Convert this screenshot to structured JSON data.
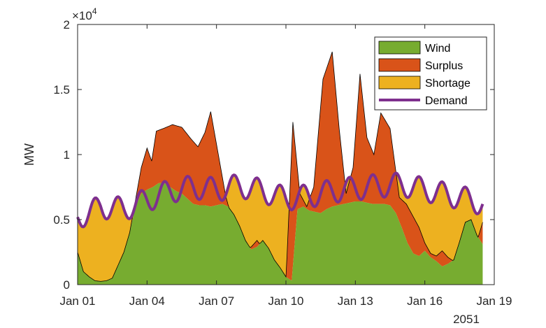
{
  "chart_data": {
    "type": "area",
    "title": "",
    "xlabel": "",
    "ylabel": "MW",
    "y_exponent_label": "×10",
    "y_exponent_power": "4",
    "x_secondary_label": "2051",
    "xlim": [
      0,
      18
    ],
    "ylim": [
      0,
      20000
    ],
    "x_ticks": [
      0,
      3,
      6,
      9,
      12,
      15,
      18
    ],
    "x_tick_labels": [
      "Jan 01",
      "Jan 04",
      "Jan 07",
      "Jan 10",
      "Jan 13",
      "Jan 16",
      "Jan 19"
    ],
    "y_ticks": [
      0,
      5000,
      10000,
      15000,
      20000
    ],
    "y_tick_labels": [
      "0",
      "0.5",
      "1",
      "1.5",
      "2"
    ],
    "grid": false,
    "legend_position": "top-right",
    "series": [
      {
        "name": "Wind",
        "color": "#77AC30",
        "kind": "area"
      },
      {
        "name": "Surplus",
        "color": "#D95319",
        "kind": "area"
      },
      {
        "name": "Shortage",
        "color": "#EDB120",
        "kind": "area"
      },
      {
        "name": "Demand",
        "color": "#7E2F8E",
        "kind": "line"
      }
    ],
    "x": [
      0,
      0.25,
      0.5,
      0.75,
      1,
      1.25,
      1.5,
      1.75,
      2,
      2.25,
      2.5,
      2.75,
      3,
      3.25,
      3.5,
      3.75,
      4,
      4.25,
      4.5,
      4.75,
      5,
      5.25,
      5.5,
      5.75,
      6,
      6.25,
      6.5,
      6.75,
      7,
      7.25,
      7.5,
      7.75,
      8,
      8.25,
      8.5,
      8.75,
      9,
      9.25,
      9.5,
      9.75,
      10,
      10.25,
      10.5,
      10.75,
      11,
      11.25,
      11.5,
      11.75,
      12,
      12.25,
      12.5,
      12.75,
      13,
      13.25,
      13.5,
      13.75,
      14,
      14.25,
      14.5,
      14.75,
      15,
      15.25,
      15.5,
      15.75,
      16,
      16.25,
      16.5,
      16.75,
      17,
      17.25,
      17.5
    ],
    "wind": [
      2500,
      1000,
      600,
      300,
      250,
      300,
      500,
      1500,
      2500,
      4000,
      6000,
      7000,
      7300,
      7500,
      7800,
      7800,
      7500,
      7200,
      7000,
      6600,
      6200,
      6100,
      6100,
      6000,
      6100,
      6200,
      6000,
      5400,
      4500,
      3400,
      2700,
      2900,
      3400,
      2800,
      1900,
      1300,
      600,
      300,
      5800,
      6000,
      5700,
      5600,
      5500,
      5800,
      6000,
      6100,
      6200,
      6300,
      6400,
      6400,
      6300,
      6200,
      6200,
      6200,
      6100,
      5500,
      4400,
      3200,
      2400,
      2200,
      2600,
      2100,
      1800,
      1400,
      1600,
      1900,
      3300,
      4800,
      5000,
      3800,
      3100
    ],
    "supply": [
      2500,
      1000,
      600,
      300,
      250,
      300,
      500,
      1500,
      2500,
      4000,
      6500,
      9000,
      10500,
      9500,
      11800,
      12000,
      12300,
      12100,
      11200,
      10600,
      11700,
      13300,
      9800,
      6800,
      4500,
      3400,
      2700,
      2900,
      3400,
      2800,
      1900,
      1300,
      600,
      300,
      12500,
      7000,
      6000,
      7500,
      15800,
      17900,
      12000,
      7000,
      9000,
      16200,
      11300,
      10000,
      13200,
      12000,
      6700,
      6200,
      4400,
      3200,
      2400,
      2200,
      2600,
      2100,
      1800,
      1400,
      1600,
      1900,
      3300,
      4800,
      5000,
      3800,
      3100
    ],
    "supply_x": [
      0,
      0.25,
      0.5,
      0.75,
      1,
      1.25,
      1.5,
      1.75,
      2,
      2.25,
      2.5,
      2.75,
      3,
      3.2,
      3.4,
      3.7,
      4.1,
      4.5,
      4.9,
      5.2,
      5.5,
      5.75,
      6.1,
      6.4,
      6.75,
      7,
      7.25,
      7.5,
      7.75,
      8,
      8.25,
      8.5,
      8.75,
      9,
      9.3,
      9.6,
      9.9,
      10.2,
      10.6,
      11,
      11.3,
      11.6,
      11.9,
      12.2,
      12.5,
      12.8,
      13.1,
      13.5,
      13.9,
      14.2,
      14.75,
      15,
      15.25,
      15.5,
      15.75,
      16,
      16.25,
      16.5,
      16.75,
      17,
      17.25,
      17.5,
      17.75,
      18,
      18.25
    ],
    "demand_base": 6500,
    "demand_amp": 1300,
    "demand_period": 1.0,
    "demand_trend": [
      0,
      0.5,
      1,
      2,
      3,
      4,
      5,
      6,
      7,
      8,
      9,
      10,
      11,
      12,
      13,
      14,
      15,
      16,
      17,
      17.5
    ],
    "demand_trend_values": [
      5200,
      5500,
      6000,
      5800,
      6500,
      7200,
      7500,
      7300,
      7600,
      7200,
      6600,
      6800,
      7200,
      7400,
      7600,
      7700,
      7300,
      6900,
      6500,
      6200
    ]
  }
}
